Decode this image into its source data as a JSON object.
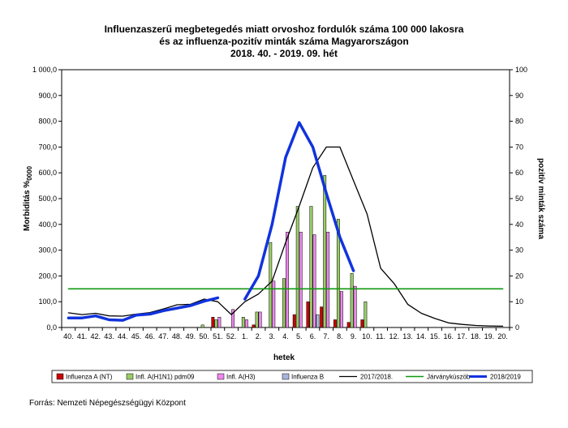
{
  "chart_data": {
    "type": "bar",
    "title_lines": [
      "Influenzaszerű megbetegedés miatt orvoshoz fordulók száma 100 000 lakosra",
      "és az influenza-pozitív minták száma Magyarországon",
      "2018. 40. - 2019. 09. hét"
    ],
    "xlabel": "hetek",
    "ylabel_left_main": "Morbiditás ",
    "ylabel_left_unit": "%",
    "ylabel_left_sub": "0000",
    "ylabel_right": "pozitív minták száma",
    "ylim_left": [
      0,
      1000
    ],
    "ylim_right": [
      0,
      100
    ],
    "yticks_left": [
      "0,0",
      "100,0",
      "200,0",
      "300,0",
      "400,0",
      "500,0",
      "600,0",
      "700,0",
      "800,0",
      "900,0",
      "1 000,0"
    ],
    "yticks_right": [
      "0",
      "10",
      "20",
      "30",
      "40",
      "50",
      "60",
      "70",
      "80",
      "90",
      "100"
    ],
    "categories": [
      "40.",
      "41.",
      "42.",
      "43.",
      "44.",
      "45.",
      "46.",
      "47.",
      "48.",
      "49.",
      "50.",
      "51.",
      "52.",
      "1.",
      "2.",
      "3.",
      "4.",
      "5.",
      "6.",
      "7.",
      "8.",
      "9.",
      "10.",
      "11.",
      "12.",
      "13.",
      "14.",
      "15.",
      "16.",
      "17.",
      "18.",
      "19.",
      "20."
    ],
    "bar_series": [
      {
        "name": "Influenza A (NT)",
        "color": "#cc0000",
        "axis": "right",
        "values": [
          0,
          0,
          0,
          0,
          0,
          0,
          0,
          0,
          0,
          0,
          0,
          4,
          0,
          0,
          1,
          0,
          0,
          5,
          10,
          8,
          3,
          2,
          3,
          0,
          0,
          0,
          0,
          0,
          0,
          0,
          0,
          0,
          0
        ]
      },
      {
        "name": "Infl. A(H1N1) pdm09",
        "color": "#99cc66",
        "axis": "right",
        "values": [
          0,
          0,
          0,
          0,
          0,
          0,
          0,
          0,
          0,
          0,
          1,
          3,
          0,
          4,
          6,
          33,
          19,
          47,
          47,
          59,
          42,
          21,
          10,
          0,
          0,
          0,
          0,
          0,
          0,
          0,
          0,
          0,
          0
        ]
      },
      {
        "name": "Infl. A(H3)",
        "color": "#ee88ee",
        "axis": "right",
        "values": [
          0,
          0,
          0,
          0,
          0,
          0,
          0,
          0,
          0,
          0,
          0,
          4,
          7,
          3,
          6,
          18,
          37,
          37,
          36,
          37,
          14,
          16,
          0,
          0,
          0,
          0,
          0,
          0,
          0,
          0,
          0,
          0,
          0
        ]
      },
      {
        "name": "Influenza B",
        "color": "#aab4dd",
        "axis": "right",
        "values": [
          0,
          0,
          0,
          0,
          0,
          0,
          0,
          0,
          0,
          0,
          0,
          0,
          0,
          0,
          0,
          0,
          0,
          0,
          5,
          0,
          0,
          0,
          0,
          0,
          0,
          0,
          0,
          0,
          0,
          0,
          0,
          0,
          0
        ]
      }
    ],
    "line_series": [
      {
        "name": "2017/2018.",
        "color": "#000000",
        "width": 1.3,
        "axis": "left",
        "values": [
          57,
          50,
          55,
          45,
          44,
          52,
          58,
          72,
          88,
          90,
          110,
          100,
          50,
          100,
          130,
          180,
          330,
          470,
          620,
          700,
          700,
          570,
          440,
          230,
          170,
          90,
          55,
          35,
          18,
          12,
          8,
          6,
          5
        ]
      },
      {
        "name": "Járványküszöb",
        "color": "#119911",
        "width": 1.6,
        "axis": "left",
        "values": [
          150,
          150,
          150,
          150,
          150,
          150,
          150,
          150,
          150,
          150,
          150,
          150,
          150,
          150,
          150,
          150,
          150,
          150,
          150,
          150,
          150,
          150,
          150,
          150,
          150,
          150,
          150,
          150,
          150,
          150,
          150,
          150,
          150
        ]
      },
      {
        "name": "2018/2019",
        "color": "#1133dd",
        "width": 3.5,
        "axis": "left",
        "values": [
          37,
          37,
          45,
          30,
          28,
          48,
          52,
          65,
          75,
          85,
          102,
          115,
          null,
          110,
          200,
          400,
          660,
          795,
          700,
          520,
          350,
          220,
          null,
          null,
          null,
          null,
          null,
          null,
          null,
          null,
          null,
          null,
          null
        ]
      }
    ],
    "legend_position": "bottom",
    "grid": false
  },
  "source": "Forrás: Nemzeti Népegészségügyi Központ"
}
